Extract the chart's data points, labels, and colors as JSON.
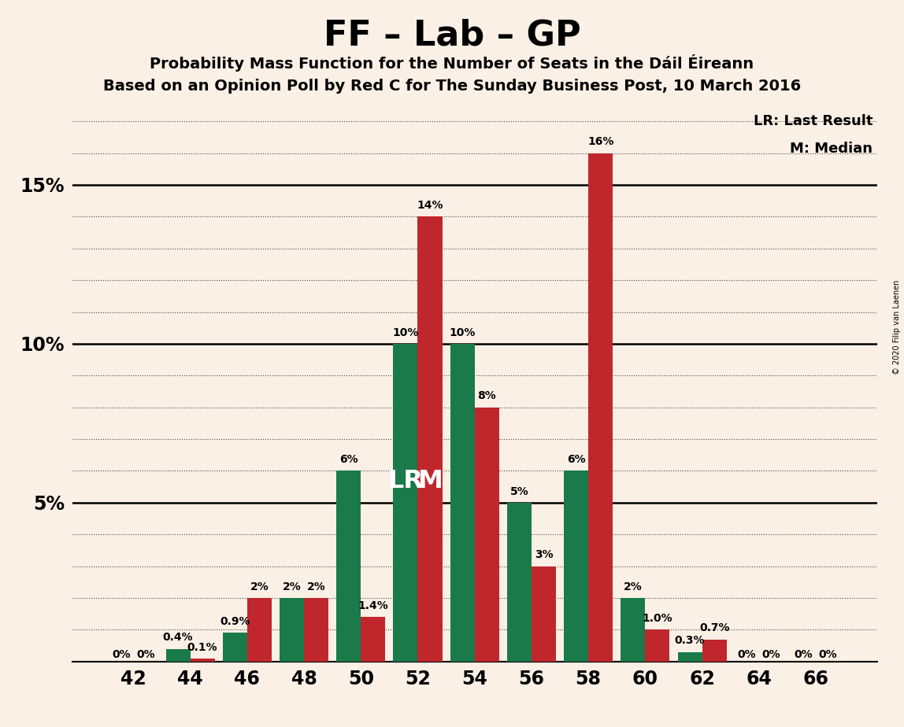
{
  "title": "FF – Lab – GP",
  "subtitle1": "Probability Mass Function for the Number of Seats in the Dáil Éireann",
  "subtitle2": "Based on an Opinion Poll by Red C for The Sunday Business Post, 10 March 2016",
  "copyright": "© 2020 Filip van Laenen",
  "seats": [
    42,
    44,
    46,
    48,
    50,
    52,
    54,
    56,
    58,
    60,
    62,
    64,
    66
  ],
  "red_values": [
    0.0,
    0.1,
    2.0,
    2.0,
    1.4,
    14.0,
    8.0,
    3.0,
    16.0,
    1.0,
    0.7,
    0.0,
    0.0
  ],
  "green_values": [
    0.0,
    0.4,
    0.9,
    2.0,
    6.0,
    10.0,
    10.0,
    5.0,
    6.0,
    2.0,
    0.3,
    0.0,
    0.0
  ],
  "red_labels": [
    "0%",
    "0.1%",
    "2%",
    "2%",
    "1.4%",
    "14%",
    "8%",
    "3%",
    "16%",
    "1.0%",
    "0.7%",
    "0%",
    "0%"
  ],
  "green_labels": [
    "0%",
    "0.4%",
    "0.9%",
    "2%",
    "6%",
    "10%",
    "10%",
    "5%",
    "6%",
    "2%",
    "0.3%",
    "0%",
    "0%"
  ],
  "red_color": "#C0272D",
  "green_color": "#1A7A4A",
  "background_color": "#FAF0E6",
  "lr_seat_idx": 5,
  "m_seat_idx": 6,
  "ylim": [
    0,
    17.5
  ],
  "ytick_vals": [
    5,
    10,
    15
  ],
  "ytick_labels": [
    "5%",
    "10%",
    "15%"
  ],
  "legend_lr": "LR: Last Result",
  "legend_m": "M: Median",
  "label_fontsize": 10,
  "title_fontsize": 32,
  "subtitle_fontsize": 14,
  "axis_fontsize": 17
}
